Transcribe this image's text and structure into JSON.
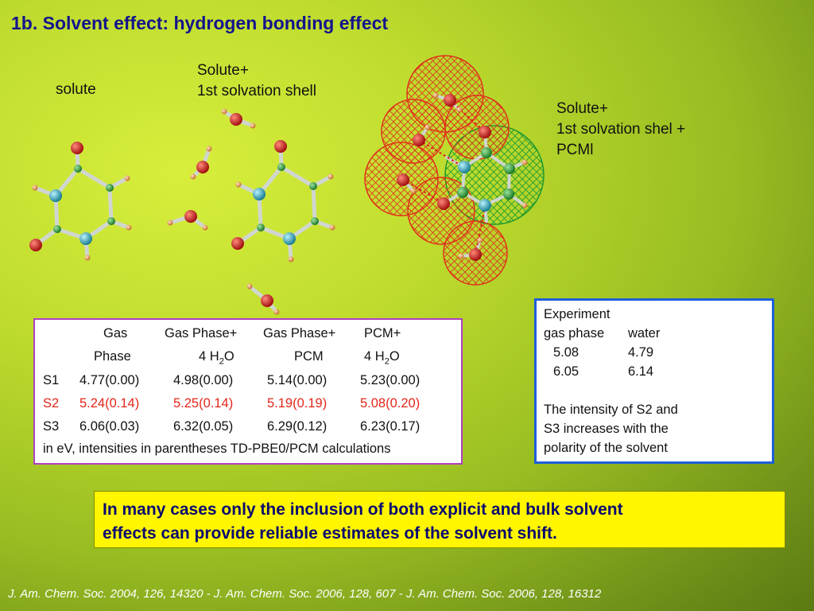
{
  "slide": {
    "title": "1b. Solvent effect: hydrogen bonding effect",
    "labels": {
      "solute": "solute",
      "shell_line1": "Solute+",
      "shell_line2": "1st  solvation shell",
      "pcm_line1": "Solute+",
      "pcm_line2": "1st  solvation shel +",
      "pcm_line3": "PCMl"
    },
    "table": {
      "header1": [
        "Gas",
        "Gas Phase+",
        "Gas Phase+",
        "PCM+"
      ],
      "header2": [
        "Phase",
        "4 H",
        "2",
        "O",
        "PCM",
        "4 H",
        "2",
        "O"
      ],
      "rows": [
        [
          "S1",
          "4.77(0.00)",
          "4.98(0.00)",
          "5.14(0.00)",
          "5.23(0.00)"
        ],
        [
          "S2",
          "5.24(0.14)",
          "5.25(0.14)",
          "5.19(0.19)",
          "5.08(0.20)"
        ],
        [
          "S3",
          "6.06(0.03)",
          "6.32(0.05)",
          "6.29(0.12)",
          "6.23(0.17)"
        ]
      ],
      "footnote": "in eV, intensities in parentheses TD-PBE0/PCM calculations"
    },
    "experiment": {
      "heading": "Experiment",
      "col1": "gas phase",
      "col2": "water",
      "r1c1": "5.08",
      "r1c2": "4.79",
      "r2c1": "6.05",
      "r2c2": "6.14",
      "note1": "The intensity of S2 and",
      "note2": "S3 increases with the",
      "note3": "polarity of the solvent"
    },
    "conclusion_line1": "In many cases only the inclusion of both explicit and bulk solvent",
    "conclusion_line2": "effects can provide reliable estimates of the solvent shift.",
    "references": "J. Am. Chem. Soc. 2004, 126, 14320 - J. Am. Chem. Soc. 2006, 128, 607 - J. Am. Chem. Soc. 2006, 128, 16312"
  },
  "colors": {
    "title": "#14148c",
    "oxygen": "#d42020",
    "nitrogen": "#2ea6b8",
    "carbon": "#2e9e3a",
    "hydrogen": "#e8a060",
    "table_border": "#b13fbf",
    "experiment_border": "#1e5fd8",
    "highlight_row": "#e4261a",
    "conclusion_bg": "#fff600"
  }
}
